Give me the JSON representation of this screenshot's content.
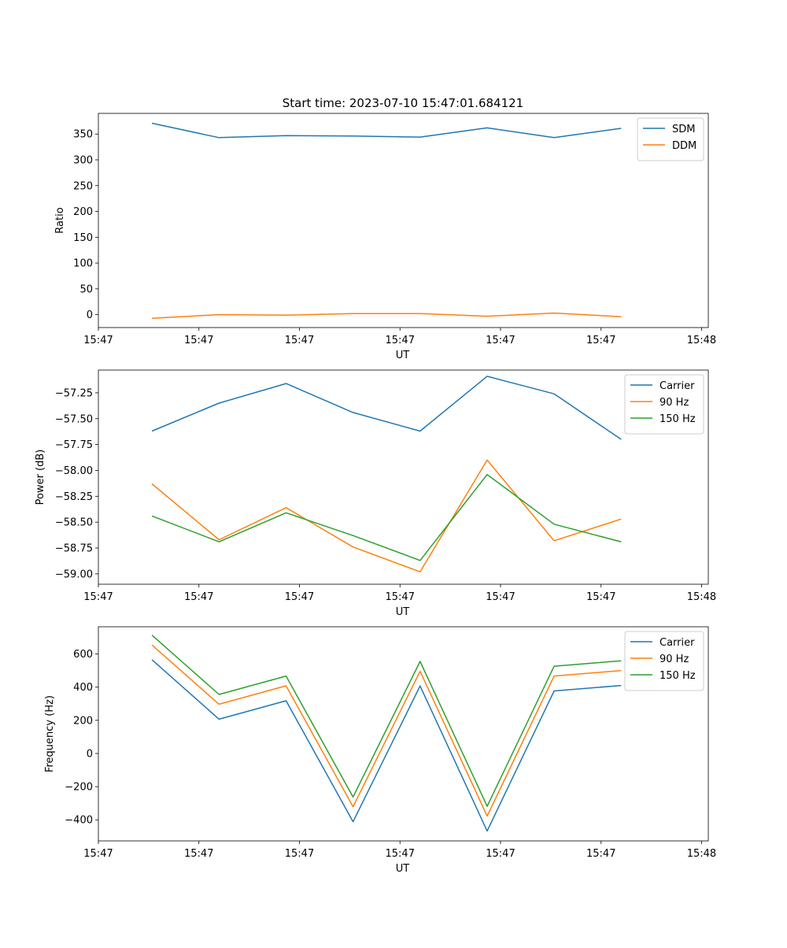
{
  "title": "Start time: 2023-07-10 15:47:01.684121",
  "chart_data": [
    {
      "type": "line",
      "xlabel": "UT",
      "ylabel": "Ratio",
      "x": [
        1,
        2,
        3,
        4,
        5,
        6,
        7,
        8
      ],
      "xlim": [
        0.2,
        9.3
      ],
      "xticks": [
        0.2,
        1.7,
        3.2,
        4.7,
        6.2,
        7.7,
        9.2
      ],
      "xtick_labels": [
        "15:47",
        "15:47",
        "15:47",
        "15:47",
        "15:47",
        "15:47",
        "15:48"
      ],
      "ylim": [
        -25,
        390
      ],
      "yticks": [
        0,
        50,
        100,
        150,
        200,
        250,
        300,
        350
      ],
      "ytick_labels": [
        "0",
        "50",
        "100",
        "150",
        "200",
        "250",
        "300",
        "350"
      ],
      "legend_position": "upper right",
      "series": [
        {
          "name": "SDM",
          "color": "#1f77b4",
          "values": [
            371,
            343,
            347,
            346,
            344,
            362,
            343,
            361
          ]
        },
        {
          "name": "DDM",
          "color": "#ff7f0e",
          "values": [
            -7,
            0,
            -1,
            2,
            2,
            -3,
            3,
            -4
          ]
        }
      ]
    },
    {
      "type": "line",
      "xlabel": "UT",
      "ylabel": "Power (dB)",
      "x": [
        1,
        2,
        3,
        4,
        5,
        6,
        7,
        8
      ],
      "xlim": [
        0.2,
        9.3
      ],
      "xticks": [
        0.2,
        1.7,
        3.2,
        4.7,
        6.2,
        7.7,
        9.2
      ],
      "xtick_labels": [
        "15:47",
        "15:47",
        "15:47",
        "15:47",
        "15:47",
        "15:47",
        "15:48"
      ],
      "ylim": [
        -59.1,
        -57.03
      ],
      "yticks": [
        -59.0,
        -58.75,
        -58.5,
        -58.25,
        -58.0,
        -57.75,
        -57.5,
        -57.25
      ],
      "ytick_labels": [
        "−59.00",
        "−58.75",
        "−58.50",
        "−58.25",
        "−58.00",
        "−57.75",
        "−57.50",
        "−57.25"
      ],
      "legend_position": "upper right",
      "series": [
        {
          "name": "Carrier",
          "color": "#1f77b4",
          "values": [
            -57.62,
            -57.35,
            -57.16,
            -57.44,
            -57.62,
            -57.09,
            -57.26,
            -57.7
          ]
        },
        {
          "name": "90 Hz",
          "color": "#ff7f0e",
          "values": [
            -58.13,
            -58.67,
            -58.36,
            -58.74,
            -58.98,
            -57.9,
            -58.68,
            -58.47
          ]
        },
        {
          "name": "150 Hz",
          "color": "#2ca02c",
          "values": [
            -58.44,
            -58.69,
            -58.41,
            -58.63,
            -58.87,
            -58.04,
            -58.52,
            -58.69
          ]
        }
      ]
    },
    {
      "type": "line",
      "xlabel": "UT",
      "ylabel": "Frequency (Hz)",
      "x": [
        1,
        2,
        3,
        4,
        5,
        6,
        7,
        8
      ],
      "xlim": [
        0.2,
        9.3
      ],
      "xticks": [
        0.2,
        1.7,
        3.2,
        4.7,
        6.2,
        7.7,
        9.2
      ],
      "xtick_labels": [
        "15:47",
        "15:47",
        "15:47",
        "15:47",
        "15:47",
        "15:47",
        "15:48"
      ],
      "ylim": [
        -527,
        764
      ],
      "yticks": [
        -400,
        -200,
        0,
        200,
        400,
        600
      ],
      "ytick_labels": [
        "−400",
        "−200",
        "0",
        "200",
        "400",
        "600"
      ],
      "legend_position": "upper right",
      "series": [
        {
          "name": "Carrier",
          "color": "#1f77b4",
          "values": [
            565,
            207,
            318,
            -411,
            407,
            -467,
            377,
            410
          ]
        },
        {
          "name": "90 Hz",
          "color": "#ff7f0e",
          "values": [
            654,
            297,
            408,
            -321,
            496,
            -377,
            467,
            500
          ]
        },
        {
          "name": "150 Hz",
          "color": "#2ca02c",
          "values": [
            713,
            356,
            467,
            -262,
            555,
            -318,
            526,
            559
          ]
        }
      ]
    }
  ]
}
